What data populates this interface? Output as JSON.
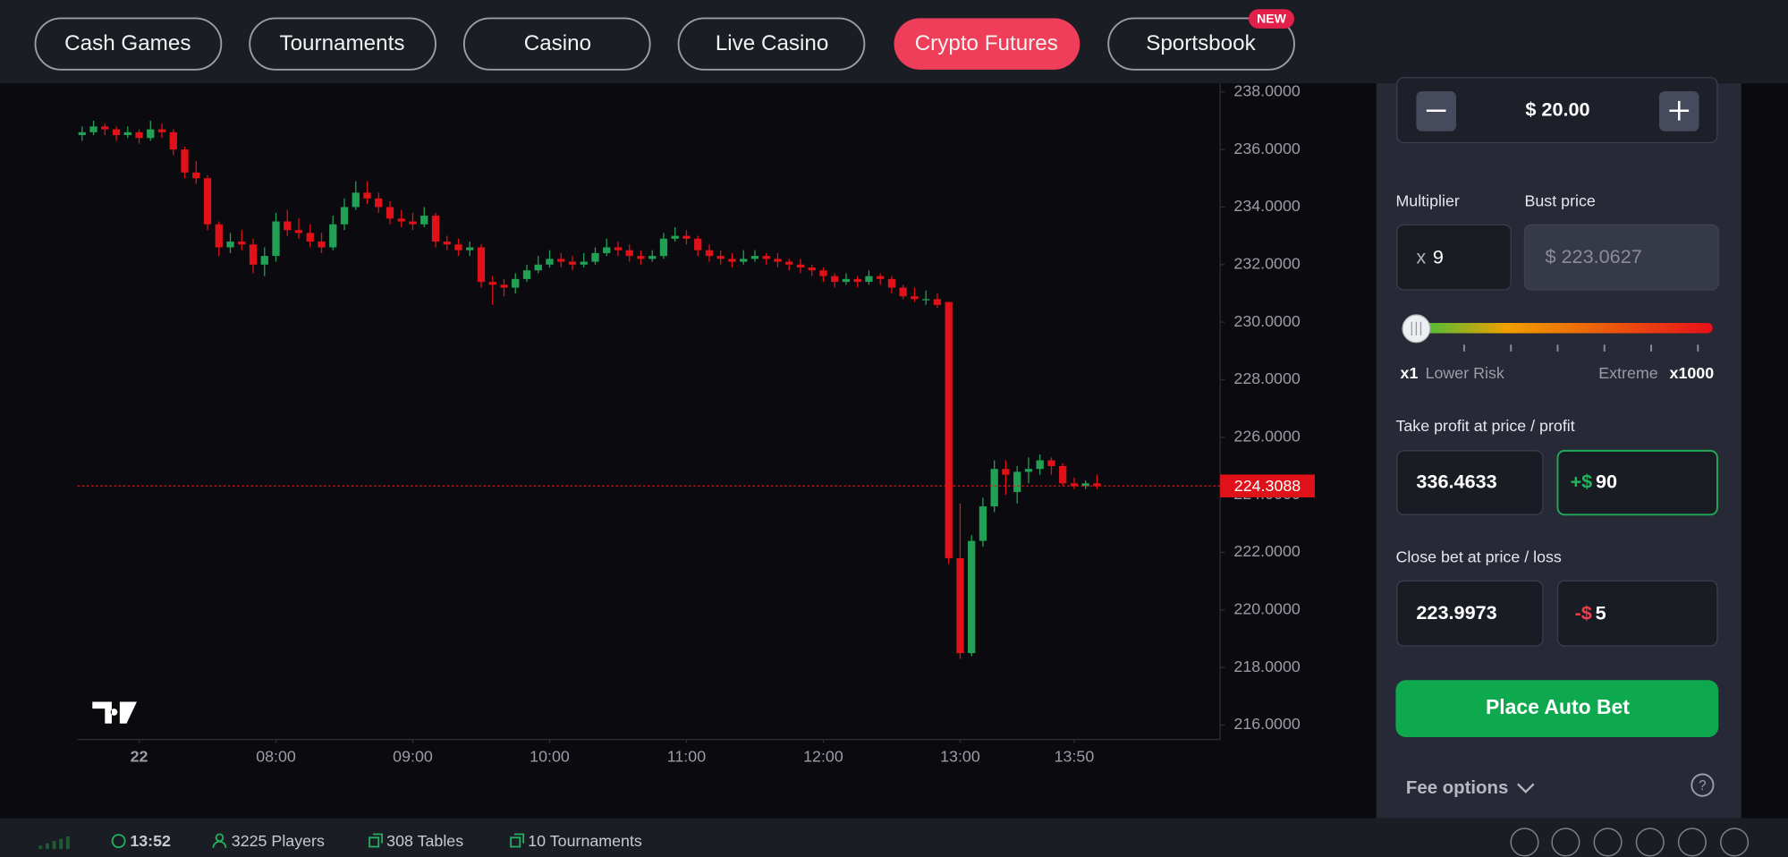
{
  "nav": {
    "tabs": [
      "Cash Games",
      "Tournaments",
      "Casino",
      "Live Casino",
      "Crypto Futures",
      "Sportsbook"
    ],
    "badge": "NEW"
  },
  "chart_data": {
    "type": "candlestick",
    "up_color": "#22a156",
    "down_color": "#e01119",
    "x": [
      395,
      400,
      405,
      410,
      415,
      420,
      425,
      430,
      435,
      440,
      445,
      450,
      455,
      460,
      465,
      470,
      475,
      480,
      485,
      490,
      495,
      500,
      505,
      510,
      515,
      520,
      525,
      530,
      535,
      540,
      545,
      550,
      555,
      560,
      565,
      570,
      575,
      580,
      585,
      590,
      595,
      600,
      605,
      610,
      615,
      620,
      625,
      630,
      635,
      640,
      645,
      650,
      655,
      660,
      665,
      670,
      675,
      680,
      685,
      690,
      695,
      700,
      705,
      710,
      715,
      720,
      725,
      730,
      735,
      740,
      745,
      750,
      755,
      760,
      765,
      770,
      775,
      780,
      785,
      790,
      795,
      800,
      805,
      810,
      815,
      820,
      825,
      830,
      835,
      840
    ],
    "candles": [
      [
        236.5,
        236.8,
        236.3,
        236.6
      ],
      [
        236.6,
        237.0,
        236.5,
        236.8
      ],
      [
        236.8,
        236.9,
        236.5,
        236.7
      ],
      [
        236.7,
        236.8,
        236.3,
        236.5
      ],
      [
        236.5,
        236.8,
        236.4,
        236.6
      ],
      [
        236.6,
        236.7,
        236.2,
        236.4
      ],
      [
        236.4,
        237.0,
        236.3,
        236.7
      ],
      [
        236.7,
        236.9,
        236.4,
        236.6
      ],
      [
        236.6,
        236.7,
        235.8,
        236.0
      ],
      [
        236.0,
        236.1,
        235.0,
        235.2
      ],
      [
        235.2,
        235.6,
        234.8,
        235.0
      ],
      [
        235.0,
        235.1,
        233.2,
        233.4
      ],
      [
        233.4,
        233.5,
        232.3,
        232.6
      ],
      [
        232.6,
        233.1,
        232.4,
        232.8
      ],
      [
        232.8,
        233.2,
        232.5,
        232.7
      ],
      [
        232.7,
        232.9,
        231.7,
        232.0
      ],
      [
        232.0,
        232.6,
        231.6,
        232.3
      ],
      [
        232.3,
        233.8,
        232.1,
        233.5
      ],
      [
        233.5,
        233.9,
        233.0,
        233.2
      ],
      [
        233.2,
        233.6,
        232.9,
        233.1
      ],
      [
        233.1,
        233.4,
        232.6,
        232.8
      ],
      [
        232.8,
        233.1,
        232.4,
        232.6
      ],
      [
        232.6,
        233.7,
        232.5,
        233.4
      ],
      [
        233.4,
        234.3,
        233.2,
        234.0
      ],
      [
        234.0,
        234.9,
        233.9,
        234.5
      ],
      [
        234.5,
        234.9,
        234.1,
        234.3
      ],
      [
        234.3,
        234.5,
        233.8,
        234.0
      ],
      [
        234.0,
        234.2,
        233.4,
        233.6
      ],
      [
        233.6,
        233.9,
        233.3,
        233.5
      ],
      [
        233.5,
        233.8,
        233.2,
        233.4
      ],
      [
        233.4,
        234.0,
        233.3,
        233.7
      ],
      [
        233.7,
        233.8,
        232.6,
        232.8
      ],
      [
        232.8,
        233.0,
        232.5,
        232.7
      ],
      [
        232.7,
        232.9,
        232.3,
        232.5
      ],
      [
        232.5,
        232.8,
        232.3,
        232.6
      ],
      [
        232.6,
        232.7,
        231.2,
        231.4
      ],
      [
        231.4,
        231.6,
        230.6,
        231.3
      ],
      [
        231.3,
        231.5,
        230.9,
        231.2
      ],
      [
        231.2,
        231.7,
        231.0,
        231.5
      ],
      [
        231.5,
        232.0,
        231.4,
        231.8
      ],
      [
        231.8,
        232.3,
        231.7,
        232.0
      ],
      [
        232.0,
        232.5,
        231.9,
        232.2
      ],
      [
        232.2,
        232.4,
        231.9,
        232.1
      ],
      [
        232.1,
        232.3,
        231.8,
        232.0
      ],
      [
        232.0,
        232.4,
        231.9,
        232.1
      ],
      [
        232.1,
        232.6,
        232.0,
        232.4
      ],
      [
        232.4,
        232.9,
        232.3,
        232.6
      ],
      [
        232.6,
        232.8,
        232.3,
        232.5
      ],
      [
        232.5,
        232.7,
        232.1,
        232.3
      ],
      [
        232.3,
        232.5,
        232.0,
        232.2
      ],
      [
        232.2,
        232.5,
        232.1,
        232.3
      ],
      [
        232.3,
        233.1,
        232.2,
        232.9
      ],
      [
        232.9,
        233.3,
        232.8,
        233.0
      ],
      [
        233.0,
        233.2,
        232.7,
        232.9
      ],
      [
        232.9,
        233.0,
        232.3,
        232.5
      ],
      [
        232.5,
        232.7,
        232.1,
        232.3
      ],
      [
        232.3,
        232.5,
        232.0,
        232.2
      ],
      [
        232.2,
        232.4,
        231.9,
        232.1
      ],
      [
        232.1,
        232.5,
        232.0,
        232.2
      ],
      [
        232.2,
        232.5,
        232.1,
        232.3
      ],
      [
        232.3,
        232.4,
        232.0,
        232.2
      ],
      [
        232.2,
        232.4,
        231.9,
        232.1
      ],
      [
        232.1,
        232.2,
        231.8,
        232.0
      ],
      [
        232.0,
        232.2,
        231.7,
        231.9
      ],
      [
        231.9,
        232.0,
        231.6,
        231.8
      ],
      [
        231.8,
        231.9,
        231.4,
        231.6
      ],
      [
        231.6,
        231.7,
        231.2,
        231.4
      ],
      [
        231.4,
        231.7,
        231.3,
        231.5
      ],
      [
        231.5,
        231.6,
        231.2,
        231.4
      ],
      [
        231.4,
        231.8,
        231.3,
        231.6
      ],
      [
        231.6,
        231.7,
        231.3,
        231.5
      ],
      [
        231.5,
        231.6,
        231.0,
        231.2
      ],
      [
        231.2,
        231.3,
        230.8,
        230.9
      ],
      [
        230.9,
        231.2,
        230.7,
        230.8
      ],
      [
        230.8,
        231.1,
        230.6,
        230.8
      ],
      [
        230.8,
        231.0,
        230.5,
        230.6
      ],
      [
        230.7,
        230.7,
        221.6,
        221.8
      ],
      [
        221.8,
        223.7,
        218.3,
        218.5
      ],
      [
        218.5,
        222.6,
        218.4,
        222.4
      ],
      [
        222.4,
        223.9,
        222.2,
        223.6
      ],
      [
        223.6,
        225.2,
        223.4,
        224.9
      ],
      [
        224.9,
        225.2,
        224.0,
        224.7
      ],
      [
        224.1,
        225.0,
        223.7,
        224.8
      ],
      [
        224.8,
        225.3,
        224.4,
        224.9
      ],
      [
        224.9,
        225.4,
        224.7,
        225.2
      ],
      [
        225.2,
        225.3,
        224.7,
        225.0
      ],
      [
        225.0,
        225.1,
        224.3,
        224.4
      ],
      [
        224.4,
        224.6,
        224.2,
        224.3
      ],
      [
        224.3,
        224.5,
        224.2,
        224.4
      ],
      [
        224.4,
        224.7,
        224.2,
        224.3
      ]
    ],
    "xlim": [
      393,
      894
    ],
    "xticks": [
      {
        "value": 420,
        "label": "22"
      },
      {
        "value": 480,
        "label": "08:00"
      },
      {
        "value": 540,
        "label": "09:00"
      },
      {
        "value": 600,
        "label": "10:00"
      },
      {
        "value": 660,
        "label": "11:00"
      },
      {
        "value": 720,
        "label": "12:00"
      },
      {
        "value": 780,
        "label": "13:00"
      },
      {
        "value": 830,
        "label": "13:50"
      }
    ],
    "ylim": [
      215.5,
      238.3
    ],
    "yticks": [
      {
        "value": 216,
        "label": "216.0000"
      },
      {
        "value": 218,
        "label": "218.0000"
      },
      {
        "value": 220,
        "label": "220.0000"
      },
      {
        "value": 222,
        "label": "222.0000"
      },
      {
        "value": 224,
        "label": "224.0000"
      },
      {
        "value": 226,
        "label": "226.0000"
      },
      {
        "value": 228,
        "label": "228.0000"
      },
      {
        "value": 230,
        "label": "230.0000"
      },
      {
        "value": 232,
        "label": "232.0000"
      },
      {
        "value": 234,
        "label": "234.0000"
      },
      {
        "value": 236,
        "label": "236.0000"
      },
      {
        "value": 238,
        "label": "238.0000"
      }
    ],
    "last_price": 224.3088,
    "last_price_color": "#e01119"
  },
  "bet_panel": {
    "amount": "$ 20.00",
    "multiplier_label": "Multiplier",
    "multiplier_prefix": "x",
    "multiplier": "9",
    "bust_label": "Bust price",
    "bust_price": "$ 223.0627",
    "risk_min": "x1",
    "risk_min_label": "Lower Risk",
    "risk_max_label": "Extreme",
    "risk_max": "x1000",
    "take_profit_label": "Take profit at price / profit",
    "take_profit_price": "336.4633",
    "take_profit_prefix": "+$",
    "take_profit_amount": "90",
    "close_label": "Close bet at price / loss",
    "close_price": "223.9973",
    "close_prefix": "-$",
    "close_amount": "5",
    "button": "Place Auto Bet",
    "fee_options": "Fee options"
  },
  "status_bar": {
    "time": "13:52",
    "players": "3225 Players",
    "tables": "308 Tables",
    "tournaments": "10 Tournaments"
  }
}
